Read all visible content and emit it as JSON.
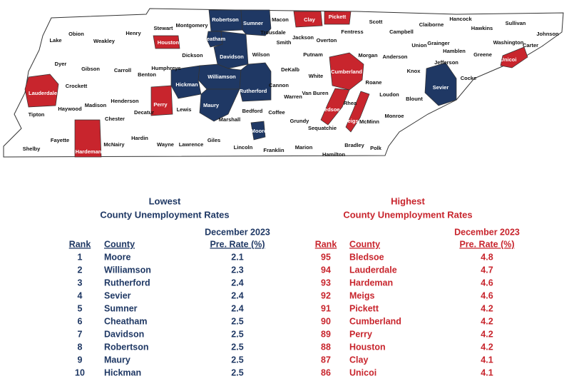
{
  "map": {
    "counties": [
      "Lake",
      "Obion",
      "Weakley",
      "Henry",
      "Stewart",
      "Montgomery",
      "Robertson",
      "Sumner",
      "Macon",
      "Clay",
      "Pickett",
      "Scott",
      "Hancock",
      "Sullivan",
      "Johnson",
      "Hawkins",
      "Claiborne",
      "Campbell",
      "Fentress",
      "Overton",
      "Jackson",
      "Smith",
      "Trousdale",
      "Cheatham",
      "Houston",
      "Dickson",
      "Davidson",
      "Wilson",
      "Putnam",
      "Morgan",
      "Anderson",
      "Union",
      "Grainger",
      "Hamblen",
      "Jefferson",
      "Greene",
      "Washington",
      "Carter",
      "Unicoi",
      "Dyer",
      "Gibson",
      "Carroll",
      "Benton",
      "Humphreys",
      "Williamson",
      "Rutherford",
      "DeKalb",
      "White",
      "Cumberland",
      "Roane",
      "Knox",
      "Sevier",
      "Cocke",
      "Crockett",
      "Lauderdale",
      "Hickman",
      "Perry",
      "Madison",
      "Henderson",
      "Haywood",
      "Decatur",
      "Lewis",
      "Maury",
      "Cannon",
      "Warren",
      "Van Buren",
      "Loudon",
      "Blount",
      "Rhea",
      "Bledsoe",
      "Meigs",
      "McMinn",
      "Monroe",
      "Tipton",
      "Chester",
      "Marshall",
      "Bedford",
      "Coffee",
      "Grundy",
      "Sequatchie",
      "Moore",
      "Hardin",
      "Wayne",
      "Lawrence",
      "Giles",
      "Lincoln",
      "Franklin",
      "Marion",
      "Hamilton",
      "Bradley",
      "Polk",
      "Fayette",
      "McNairy",
      "Hardeman",
      "Shelby"
    ]
  },
  "tables": {
    "lowest": {
      "title": "Lowest",
      "subtitle": "County Unemployment Rates",
      "date": "December 2023",
      "color": "#1f3864",
      "headers": [
        "Rank",
        "County",
        "Pre. Rate (%)"
      ],
      "rows": [
        [
          1,
          "Moore",
          2.1
        ],
        [
          2,
          "Williamson",
          2.3
        ],
        [
          3,
          "Rutherford",
          2.4
        ],
        [
          4,
          "Sevier",
          2.4
        ],
        [
          5,
          "Sumner",
          2.4
        ],
        [
          6,
          "Cheatham",
          2.5
        ],
        [
          7,
          "Davidson",
          2.5
        ],
        [
          8,
          "Robertson",
          2.5
        ],
        [
          9,
          "Maury",
          2.5
        ],
        [
          10,
          "Hickman",
          2.5
        ]
      ]
    },
    "highest": {
      "title": "Highest",
      "subtitle": "County Unemployment Rates",
      "date": "December 2023",
      "color": "#c8252d",
      "headers": [
        "Rank",
        "County",
        "Pre. Rate (%)"
      ],
      "rows": [
        [
          95,
          "Bledsoe",
          4.8
        ],
        [
          94,
          "Lauderdale",
          4.7
        ],
        [
          93,
          "Hardeman",
          4.6
        ],
        [
          92,
          "Meigs",
          4.6
        ],
        [
          91,
          "Pickett",
          4.2
        ],
        [
          90,
          "Cumberland",
          4.2
        ],
        [
          89,
          "Perry",
          4.2
        ],
        [
          88,
          "Houston",
          4.2
        ],
        [
          87,
          "Clay",
          4.1
        ],
        [
          86,
          "Unicoi",
          4.1
        ]
      ]
    }
  }
}
